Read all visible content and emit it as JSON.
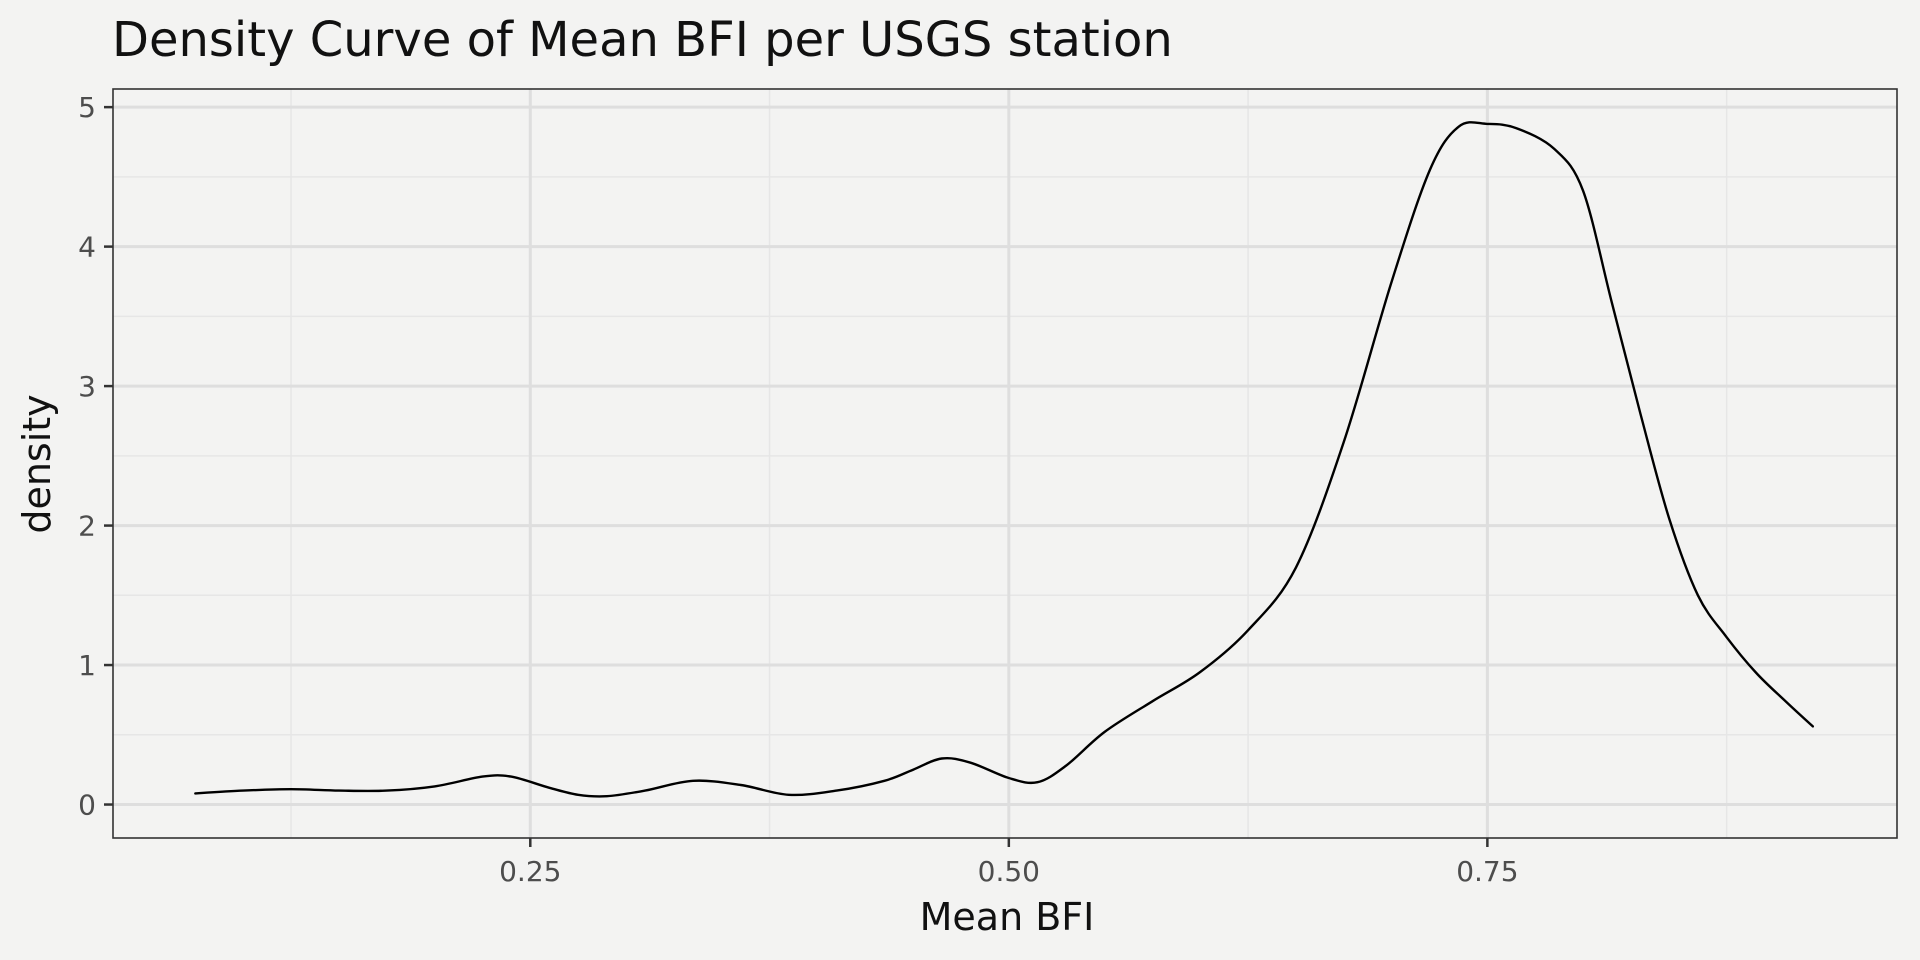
{
  "chart_data": {
    "type": "line",
    "title": "Density Curve of Mean BFI per USGS station",
    "xlabel": "Mean BFI",
    "ylabel": "density",
    "xlim": [
      0.032,
      0.964
    ],
    "ylim": [
      -0.24,
      5.13
    ],
    "x_ticks": [
      0.25,
      0.5,
      0.75
    ],
    "x_tick_labels": [
      "0.25",
      "0.50",
      "0.75"
    ],
    "x_minor_ticks": [
      0.125,
      0.375,
      0.625,
      0.875
    ],
    "y_ticks": [
      0,
      1,
      2,
      3,
      4,
      5
    ],
    "y_tick_labels": [
      "0",
      "1",
      "2",
      "3",
      "4",
      "5"
    ],
    "y_minor_ticks": [
      0.5,
      1.5,
      2.5,
      3.5,
      4.5
    ],
    "grid": true,
    "series": [
      {
        "x": [
          0.075,
          0.1,
          0.125,
          0.15,
          0.175,
          0.2,
          0.225,
          0.24,
          0.26,
          0.275,
          0.29,
          0.31,
          0.335,
          0.36,
          0.385,
          0.41,
          0.435,
          0.45,
          0.465,
          0.48,
          0.5,
          0.515,
          0.53,
          0.55,
          0.575,
          0.6,
          0.625,
          0.65,
          0.675,
          0.7,
          0.72,
          0.735,
          0.75,
          0.765,
          0.785,
          0.8,
          0.815,
          0.83,
          0.845,
          0.86,
          0.875,
          0.89,
          0.905,
          0.92
        ],
        "y": [
          0.08,
          0.1,
          0.11,
          0.1,
          0.1,
          0.13,
          0.2,
          0.2,
          0.12,
          0.07,
          0.06,
          0.1,
          0.17,
          0.14,
          0.07,
          0.1,
          0.17,
          0.25,
          0.33,
          0.3,
          0.19,
          0.16,
          0.28,
          0.52,
          0.74,
          0.95,
          1.25,
          1.7,
          2.6,
          3.75,
          4.55,
          4.86,
          4.88,
          4.85,
          4.7,
          4.4,
          3.6,
          2.8,
          2.05,
          1.5,
          1.2,
          0.95,
          0.75,
          0.56
        ]
      }
    ]
  }
}
